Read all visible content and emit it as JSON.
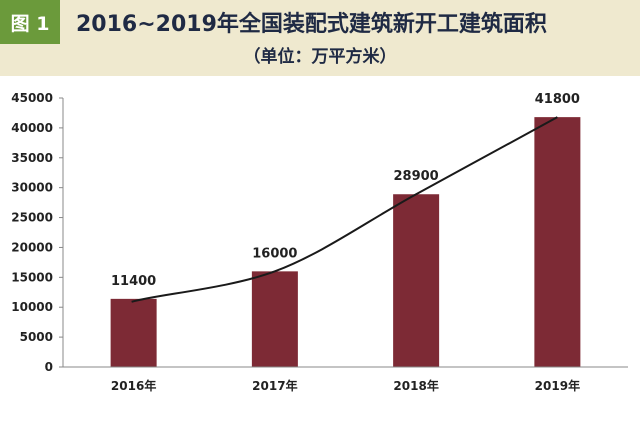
{
  "header": {
    "figure_label": "图 1",
    "title": "2016~2019年全国装配式建筑新开工建筑面积",
    "subtitle": "（单位：万平方米）"
  },
  "colors": {
    "bar": "#7d2a35",
    "trend": "#1a1a1a",
    "badge": "#6b9a3b",
    "header_bg": "#efe9cf",
    "title_text": "#1f2a44"
  },
  "chart_data": {
    "type": "bar",
    "categories": [
      "2016年",
      "2017年",
      "2018年",
      "2019年"
    ],
    "values": [
      11400,
      16000,
      28900,
      41800
    ],
    "data_labels": [
      "11400",
      "16000",
      "28900",
      "41800"
    ],
    "ylim": [
      0,
      45000
    ],
    "yticks": [
      0,
      5000,
      10000,
      15000,
      20000,
      25000,
      30000,
      35000,
      40000,
      45000
    ],
    "trendline": true,
    "grid": false,
    "title": "2016~2019年全国装配式建筑新开工建筑面积",
    "xlabel": "",
    "ylabel": ""
  }
}
